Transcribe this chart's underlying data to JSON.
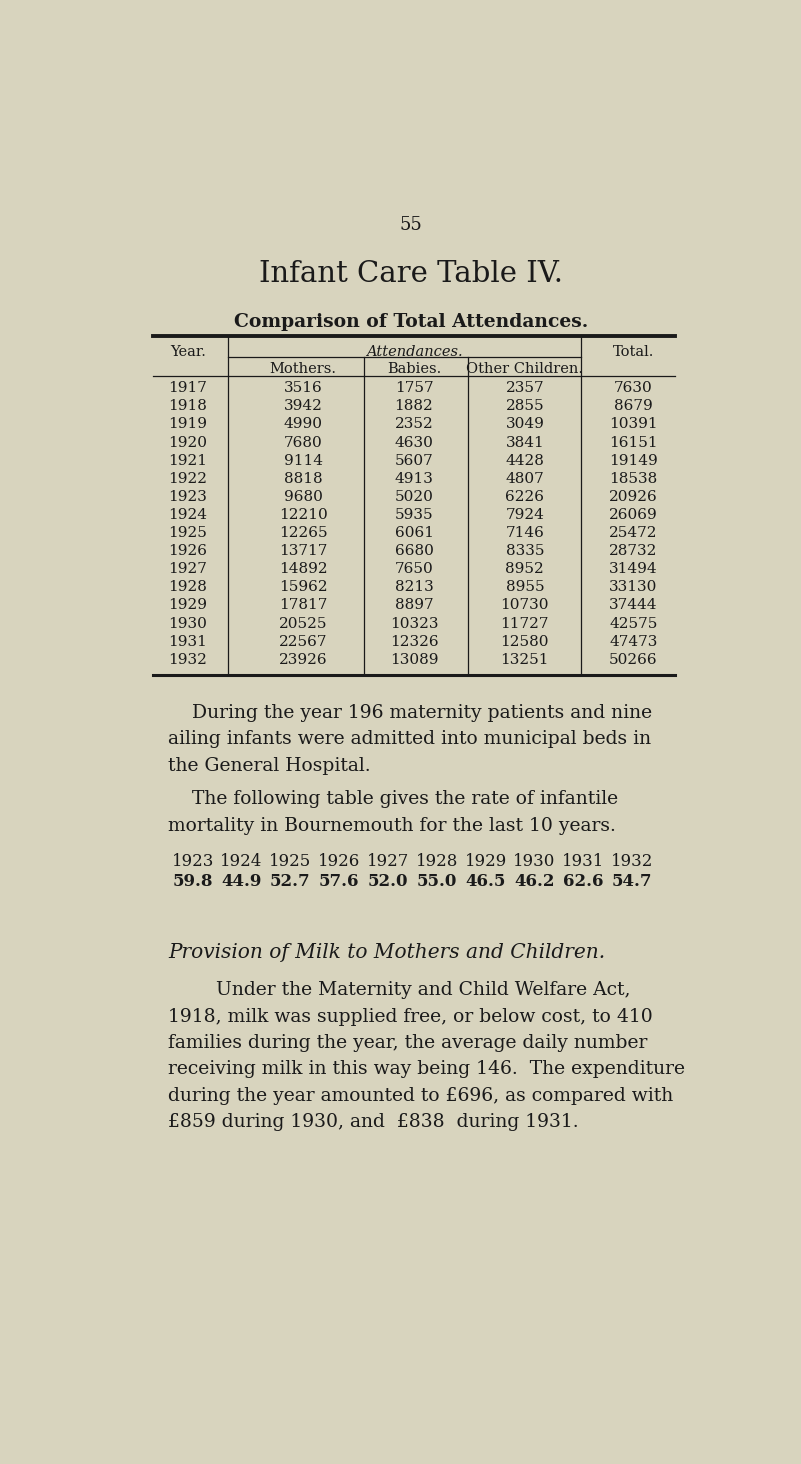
{
  "bg_color": "#d8d4be",
  "text_color": "#1a1a1a",
  "page_number": "55",
  "title": "Infant Care Table IV.",
  "subtitle": "Comparison of Total Attendances.",
  "table_data": [
    [
      "1917",
      "3516",
      "1757",
      "2357",
      "7630"
    ],
    [
      "1918",
      "3942",
      "1882",
      "2855",
      "8679"
    ],
    [
      "1919",
      "4990",
      "2352",
      "3049",
      "10391"
    ],
    [
      "1920",
      "7680",
      "4630",
      "3841",
      "16151"
    ],
    [
      "1921",
      "9114",
      "5607",
      "4428",
      "19149"
    ],
    [
      "1922",
      "8818",
      "4913",
      "4807",
      "18538"
    ],
    [
      "1923",
      "9680",
      "5020",
      "6226",
      "20926"
    ],
    [
      "1924",
      "12210",
      "5935",
      "7924",
      "26069"
    ],
    [
      "1925",
      "12265",
      "6061",
      "7146",
      "25472"
    ],
    [
      "1926",
      "13717",
      "6680",
      "8335",
      "28732"
    ],
    [
      "1927",
      "14892",
      "7650",
      "8952",
      "31494"
    ],
    [
      "1928",
      "15962",
      "8213",
      "8955",
      "33130"
    ],
    [
      "1929",
      "17817",
      "8897",
      "10730",
      "37444"
    ],
    [
      "1930",
      "20525",
      "10323",
      "11727",
      "42575"
    ],
    [
      "1931",
      "22567",
      "12326",
      "12580",
      "47473"
    ],
    [
      "1932",
      "23926",
      "13089",
      "13251",
      "50266"
    ]
  ],
  "mortality_years": [
    "1923",
    "1924",
    "1925",
    "1926",
    "1927",
    "1928",
    "1929",
    "1930",
    "1931",
    "1932"
  ],
  "mortality_rates": [
    "59.8",
    "44.9",
    "52.7",
    "57.6",
    "52.0",
    "55.0",
    "46.5",
    "46.2",
    "62.6",
    "54.7"
  ],
  "section_title": "Provision of Milk to Mothers and Children.",
  "p3_text": "        Under the Maternity and Child Welfare Act,\n1918, milk was supplied free, or below cost, to 410\nfamilies during the year, the average daily number\nreceiving milk in this way being 146.  The expenditure\nduring the year amounted to £696, as compared with\n£859 during 1930, and  £838  during 1931."
}
